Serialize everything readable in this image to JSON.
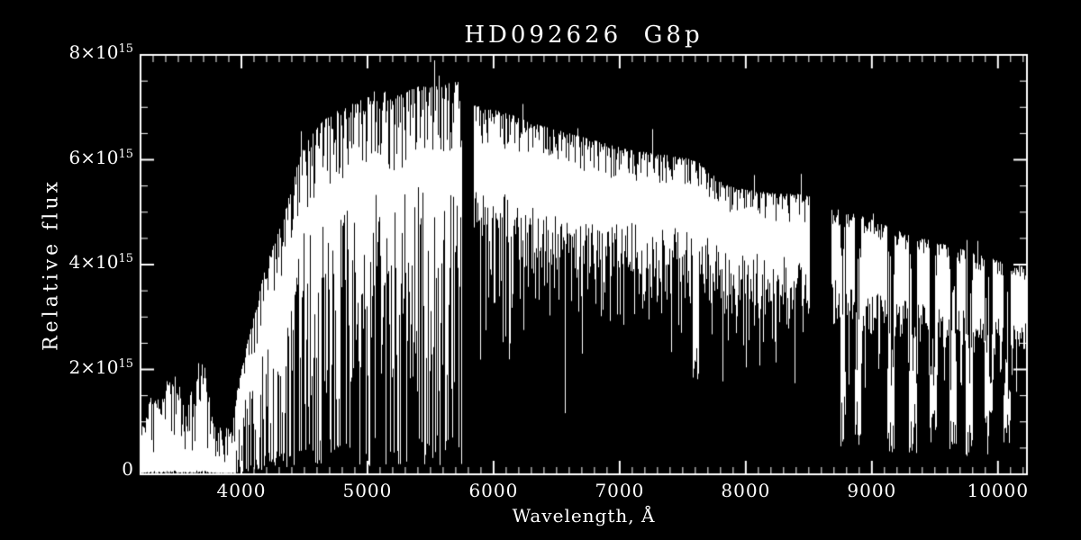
{
  "page": {
    "background": "#000000",
    "foreground": "#ffffff"
  },
  "chart_data": {
    "type": "line",
    "variant": "astronomical-spectrum",
    "title": "HD092626  G8p",
    "xlabel": "Wavelength, Å",
    "ylabel": "Relative flux",
    "grid": "off",
    "legend": "none",
    "xlim": [
      3200,
      10230
    ],
    "ylim": [
      0,
      8
    ],
    "y_unit_factor": "1e15",
    "x_ticks": {
      "major": [
        4000,
        5000,
        6000,
        7000,
        8000,
        9000,
        10000
      ],
      "labels": [
        "4000",
        "5000",
        "6000",
        "7000",
        "8000",
        "9000",
        "10000"
      ],
      "minor_step": 100
    },
    "y_ticks": {
      "major": [
        0,
        2,
        4,
        6,
        8
      ],
      "labels": [
        {
          "mantissa": "0",
          "exponent": ""
        },
        {
          "mantissa": "2×10",
          "exponent": "15"
        },
        {
          "mantissa": "4×10",
          "exponent": "15"
        },
        {
          "mantissa": "6×10",
          "exponent": "15"
        },
        {
          "mantissa": "8×10",
          "exponent": "15"
        }
      ],
      "minor_step": 0.5
    },
    "gaps": [
      [
        5745,
        5835
      ],
      [
        8500,
        8670
      ]
    ],
    "envelope": [
      [
        3200,
        0.85
      ],
      [
        3260,
        1.45
      ],
      [
        3310,
        1.7
      ],
      [
        3360,
        1.5
      ],
      [
        3420,
        1.9
      ],
      [
        3470,
        2.05
      ],
      [
        3520,
        1.5
      ],
      [
        3560,
        1.15
      ],
      [
        3620,
        1.9
      ],
      [
        3680,
        2.35
      ],
      [
        3720,
        1.9
      ],
      [
        3770,
        1.1
      ],
      [
        3820,
        0.95
      ],
      [
        3880,
        0.9
      ],
      [
        3930,
        1.05
      ],
      [
        3960,
        1.6
      ],
      [
        4020,
        2.3
      ],
      [
        4080,
        2.9
      ],
      [
        4140,
        3.5
      ],
      [
        4200,
        4.1
      ],
      [
        4260,
        4.5
      ],
      [
        4320,
        4.8
      ],
      [
        4390,
        5.5
      ],
      [
        4460,
        6.1
      ],
      [
        4540,
        6.45
      ],
      [
        4620,
        6.7
      ],
      [
        4700,
        6.85
      ],
      [
        4800,
        7.0
      ],
      [
        4900,
        7.1
      ],
      [
        5000,
        7.2
      ],
      [
        5100,
        7.1
      ],
      [
        5200,
        7.2
      ],
      [
        5300,
        7.3
      ],
      [
        5400,
        7.4
      ],
      [
        5500,
        7.4
      ],
      [
        5600,
        7.45
      ],
      [
        5745,
        7.5
      ],
      [
        5835,
        7.05
      ],
      [
        5900,
        7.0
      ],
      [
        6000,
        6.95
      ],
      [
        6150,
        6.85
      ],
      [
        6300,
        6.7
      ],
      [
        6450,
        6.6
      ],
      [
        6600,
        6.5
      ],
      [
        6750,
        6.4
      ],
      [
        6900,
        6.3
      ],
      [
        7050,
        6.2
      ],
      [
        7200,
        6.15
      ],
      [
        7350,
        6.1
      ],
      [
        7500,
        6.05
      ],
      [
        7620,
        5.95
      ],
      [
        7700,
        5.8
      ],
      [
        7780,
        5.6
      ],
      [
        7860,
        5.5
      ],
      [
        7950,
        5.45
      ],
      [
        8100,
        5.4
      ],
      [
        8250,
        5.35
      ],
      [
        8400,
        5.35
      ],
      [
        8500,
        5.3
      ],
      [
        8670,
        5.1
      ],
      [
        8800,
        5.0
      ],
      [
        8950,
        4.9
      ],
      [
        9100,
        4.75
      ],
      [
        9250,
        4.6
      ],
      [
        9400,
        4.5
      ],
      [
        9550,
        4.4
      ],
      [
        9700,
        4.3
      ],
      [
        9850,
        4.18
      ],
      [
        10000,
        4.08
      ],
      [
        10120,
        4.0
      ],
      [
        10230,
        3.95
      ]
    ],
    "absorption_lines": [
      [
        3933,
        0.2,
        4
      ],
      [
        3968,
        0.3,
        4
      ],
      [
        4101,
        0.9,
        4
      ],
      [
        4226,
        1.0,
        4
      ],
      [
        4340,
        1.3,
        4
      ],
      [
        4861,
        1.9,
        4
      ],
      [
        5172,
        2.5,
        5
      ],
      [
        5890,
        2.9,
        5
      ],
      [
        6122,
        2.2,
        4
      ],
      [
        6563,
        1.2,
        4
      ],
      [
        6870,
        3.4,
        12
      ],
      [
        7190,
        3.6,
        8
      ],
      [
        7594,
        2.1,
        25
      ],
      [
        8230,
        3.0,
        6
      ],
      [
        8498,
        2.8,
        4
      ],
      [
        8542,
        2.5,
        4
      ],
      [
        8662,
        2.4,
        4
      ],
      [
        9050,
        2.0,
        5
      ],
      [
        9350,
        1.9,
        5
      ],
      [
        9650,
        2.0,
        5
      ],
      [
        9950,
        2.1,
        5
      ],
      [
        10100,
        2.2,
        5
      ]
    ],
    "telluric_bands": [
      [
        8765,
        40
      ],
      [
        8885,
        50
      ],
      [
        9145,
        60
      ],
      [
        9320,
        65
      ],
      [
        9480,
        60
      ],
      [
        9635,
        60
      ],
      [
        9765,
        55
      ],
      [
        9920,
        60
      ],
      [
        10065,
        55
      ]
    ]
  },
  "render": {
    "seed": 11
  }
}
